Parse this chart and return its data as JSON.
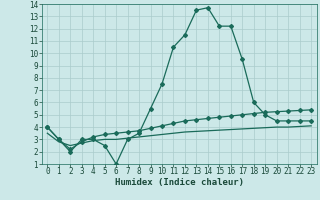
{
  "xlabel": "Humidex (Indice chaleur)",
  "bg_color": "#cce8e8",
  "grid_color": "#aacccc",
  "line_color": "#1a6b5a",
  "xlim": [
    -0.5,
    23.5
  ],
  "ylim": [
    1,
    14
  ],
  "xticks": [
    0,
    1,
    2,
    3,
    4,
    5,
    6,
    7,
    8,
    9,
    10,
    11,
    12,
    13,
    14,
    15,
    16,
    17,
    18,
    19,
    20,
    21,
    22,
    23
  ],
  "yticks": [
    1,
    2,
    3,
    4,
    5,
    6,
    7,
    8,
    9,
    10,
    11,
    12,
    13,
    14
  ],
  "line1_x": [
    0,
    1,
    2,
    3,
    4,
    5,
    6,
    7,
    8,
    9,
    10,
    11,
    12,
    13,
    14,
    15,
    16,
    17,
    18,
    19,
    20,
    21,
    22,
    23
  ],
  "line1_y": [
    4.0,
    3.0,
    2.0,
    3.0,
    3.0,
    2.5,
    1.0,
    3.0,
    3.5,
    5.5,
    7.5,
    10.5,
    11.5,
    13.5,
    13.7,
    12.2,
    12.2,
    9.5,
    6.0,
    5.0,
    4.5,
    4.5,
    4.5,
    4.5
  ],
  "line2_x": [
    0,
    1,
    2,
    3,
    4,
    5,
    6,
    7,
    8,
    9,
    10,
    11,
    12,
    13,
    14,
    15,
    16,
    17,
    18,
    19,
    20,
    21,
    22,
    23
  ],
  "line2_y": [
    4.0,
    3.0,
    2.2,
    2.8,
    3.2,
    3.4,
    3.5,
    3.6,
    3.7,
    3.9,
    4.1,
    4.3,
    4.5,
    4.6,
    4.7,
    4.8,
    4.9,
    5.0,
    5.1,
    5.2,
    5.25,
    5.3,
    5.35,
    5.4
  ],
  "line3_x": [
    0,
    1,
    2,
    3,
    4,
    5,
    6,
    7,
    8,
    9,
    10,
    11,
    12,
    13,
    14,
    15,
    16,
    17,
    18,
    19,
    20,
    21,
    22,
    23
  ],
  "line3_y": [
    3.5,
    2.8,
    2.5,
    2.7,
    2.9,
    3.0,
    3.0,
    3.1,
    3.2,
    3.3,
    3.4,
    3.5,
    3.6,
    3.65,
    3.7,
    3.75,
    3.8,
    3.85,
    3.9,
    3.95,
    4.0,
    4.0,
    4.05,
    4.1
  ],
  "tick_fontsize": 5.5,
  "xlabel_fontsize": 6.5
}
